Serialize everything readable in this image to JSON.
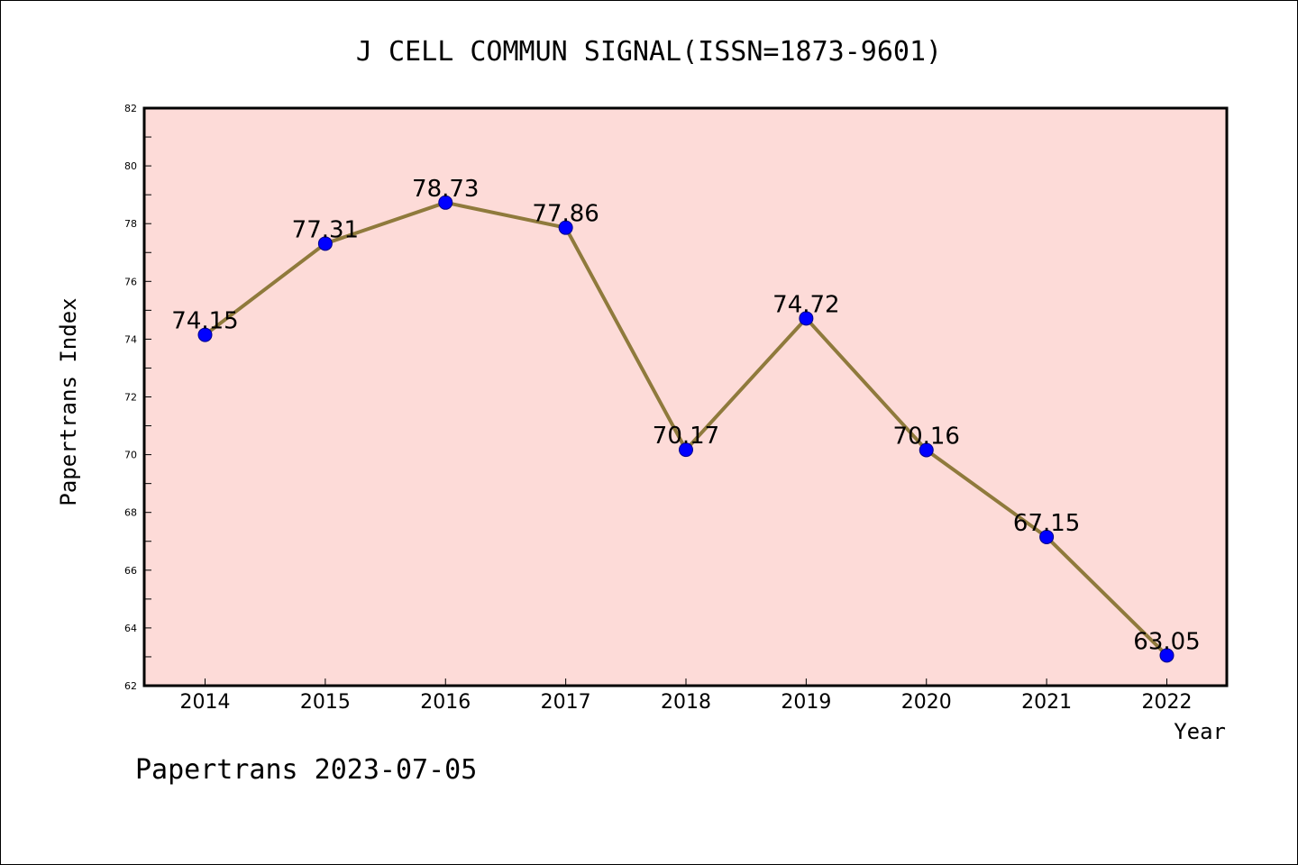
{
  "chart_data": {
    "type": "line",
    "title": "J CELL COMMUN SIGNAL(ISSN=1873-9601)",
    "xlabel": "Year",
    "ylabel": "Papertrans Index",
    "footer": "Papertrans 2023-07-05",
    "x": [
      "2014",
      "2015",
      "2016",
      "2017",
      "2018",
      "2019",
      "2020",
      "2021",
      "2022"
    ],
    "values": [
      74.15,
      77.31,
      78.73,
      77.86,
      70.17,
      74.72,
      70.16,
      67.15,
      63.05
    ],
    "labels": [
      "74.15",
      "77.31",
      "78.73",
      "77.86",
      "70.17",
      "74.72",
      "70.16",
      "67.15",
      "63.05"
    ],
    "ylim": [
      62,
      82
    ],
    "yticks": [
      "62",
      "64",
      "66",
      "68",
      "70",
      "72",
      "74",
      "76",
      "78",
      "80",
      "82"
    ],
    "grid": false,
    "legend": "none",
    "colors": {
      "plot_background": "#fddbd8",
      "line": "#8f7a3c",
      "marker": "#0000ff",
      "marker_edge": "#00008b",
      "axis": "#000000"
    }
  }
}
